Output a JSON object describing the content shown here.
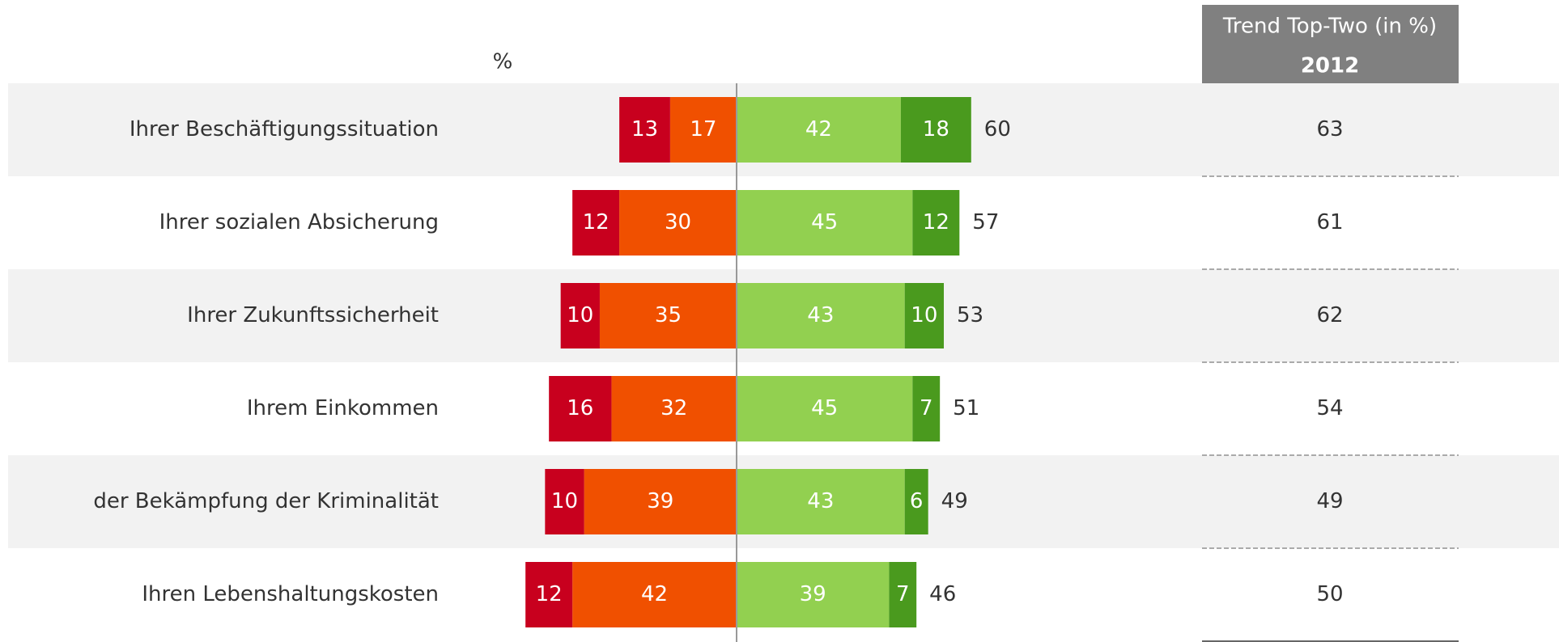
{
  "chart_data": {
    "type": "diverging_bar",
    "unit_label": "%",
    "categories": [
      "Ihrer Beschäftigungssituation",
      "Ihrer sozialen Absicherung",
      "Ihrer Zukunftssicherheit",
      "Ihrem Einkommen",
      "der Bekämpfung der Kriminalität",
      "Ihren Lebenshaltungskosten"
    ],
    "series": [
      {
        "color": "#c8001e",
        "side": "left",
        "values": [
          13,
          12,
          10,
          16,
          10,
          12
        ]
      },
      {
        "color": "#f05000",
        "side": "left",
        "values": [
          17,
          30,
          35,
          32,
          39,
          42
        ]
      },
      {
        "color": "#92d050",
        "side": "right",
        "values": [
          42,
          45,
          43,
          45,
          43,
          39
        ]
      },
      {
        "color": "#4a9a1e",
        "side": "right",
        "values": [
          18,
          12,
          10,
          7,
          6,
          7
        ]
      }
    ],
    "top_two_values": [
      60,
      57,
      53,
      51,
      49,
      46
    ],
    "trend": {
      "title": "Trend Top-Two (in %)",
      "year": "2012",
      "values": [
        63,
        61,
        62,
        54,
        49,
        50
      ]
    }
  }
}
